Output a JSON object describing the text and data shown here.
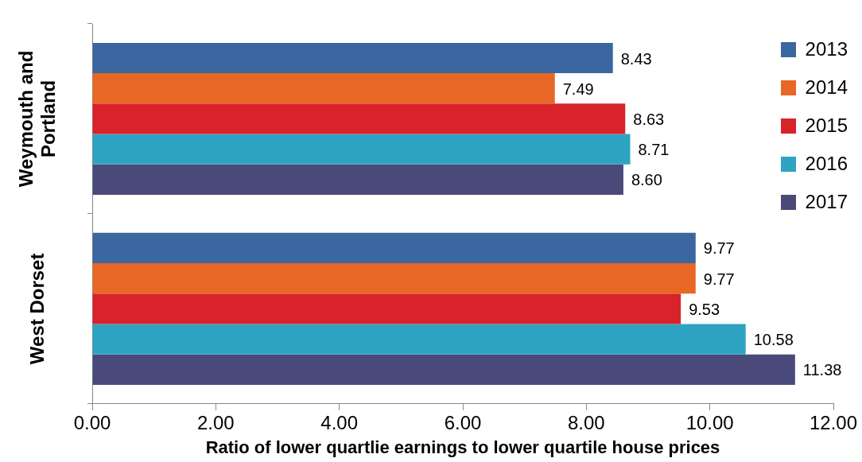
{
  "chart_data": {
    "type": "bar",
    "orientation": "horizontal",
    "xlabel": "Ratio of lower quartlie earnings to lower quartile house prices",
    "categories": [
      "Weymouth and Portland",
      "West Dorset"
    ],
    "series": [
      {
        "name": "2013",
        "color": "#3a67a0",
        "values": [
          8.43,
          9.77
        ],
        "value_labels": [
          "8.43",
          "9.77"
        ]
      },
      {
        "name": "2014",
        "color": "#e96725",
        "values": [
          7.49,
          9.77
        ],
        "value_labels": [
          "7.49",
          "9.77"
        ]
      },
      {
        "name": "2015",
        "color": "#d8232a",
        "values": [
          8.63,
          9.53
        ],
        "value_labels": [
          "8.63",
          "9.53"
        ]
      },
      {
        "name": "2016",
        "color": "#2ea4c2",
        "values": [
          8.71,
          10.58
        ],
        "value_labels": [
          "8.71",
          "10.58"
        ]
      },
      {
        "name": "2017",
        "color": "#4a4a7a",
        "values": [
          8.6,
          11.38
        ],
        "value_labels": [
          "8.60",
          "11.38"
        ]
      }
    ],
    "xlim": [
      0,
      12
    ],
    "xticks": [
      {
        "value": 0,
        "label": "0.00"
      },
      {
        "value": 2,
        "label": "2.00"
      },
      {
        "value": 4,
        "label": "4.00"
      },
      {
        "value": 6,
        "label": "6.00"
      },
      {
        "value": 8,
        "label": "8.00"
      },
      {
        "value": 10,
        "label": "10.00"
      },
      {
        "value": 12,
        "label": "12.00"
      }
    ],
    "grid": false,
    "legend": "top right"
  }
}
